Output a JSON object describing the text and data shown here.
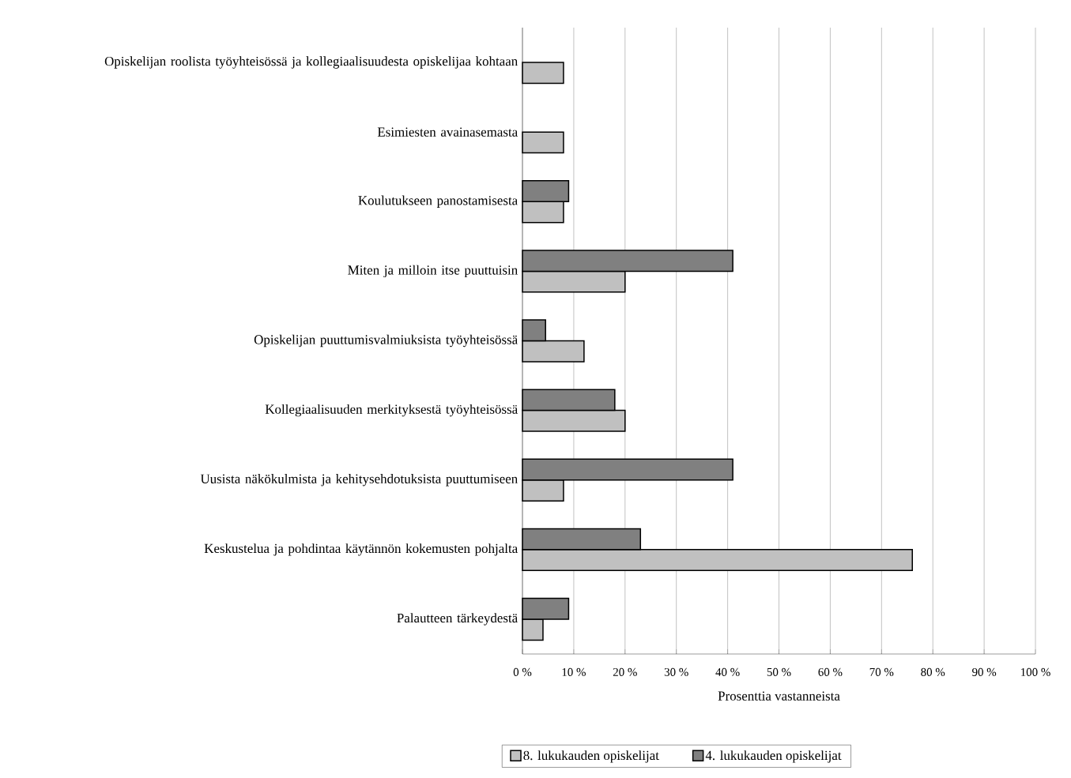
{
  "chart_data": {
    "type": "bar",
    "orientation": "horizontal",
    "xlabel": "Prosenttia vastanneista",
    "categories": [
      "Opiskelijan roolista työyhteisössä ja kollegiaalisuudesta opiskelijaa kohtaan",
      "Esimiesten avainasemasta",
      "Koulutukseen panostamisesta",
      "Miten ja milloin itse puuttuisin",
      "Opiskelijan puuttumisvalmiuksista työyhteisössä",
      "Kollegiaalisuuden merkityksestä työyhteisössä",
      "Uusista näkökulmista ja kehitysehdotuksista puuttumiseen",
      "Keskustelua ja pohdintaa käytännön kokemusten pohjalta",
      "Palautteen tärkeydestä"
    ],
    "series": [
      {
        "name": "8. lukukauden opiskelijat",
        "color": "#c0c0c0",
        "values": [
          8,
          8,
          8,
          20,
          12,
          20,
          8,
          76,
          4
        ]
      },
      {
        "name": "4. lukukauden opiskelijat",
        "color": "#808080",
        "values": [
          null,
          null,
          9,
          41,
          4.5,
          18,
          41,
          23,
          9
        ]
      }
    ],
    "xlim": [
      0,
      100
    ],
    "xticks": [
      {
        "value": 0,
        "label": "0 %"
      },
      {
        "value": 10,
        "label": "10 %"
      },
      {
        "value": 20,
        "label": "20 %"
      },
      {
        "value": 30,
        "label": "30 %"
      },
      {
        "value": 40,
        "label": "40 %"
      },
      {
        "value": 50,
        "label": "50 %"
      },
      {
        "value": 60,
        "label": "60 %"
      },
      {
        "value": 70,
        "label": "70 %"
      },
      {
        "value": 80,
        "label": "80 %"
      },
      {
        "value": 90,
        "label": "90 %"
      },
      {
        "value": 100,
        "label": "100 %"
      }
    ],
    "grid": "x",
    "legend": "bottom"
  }
}
